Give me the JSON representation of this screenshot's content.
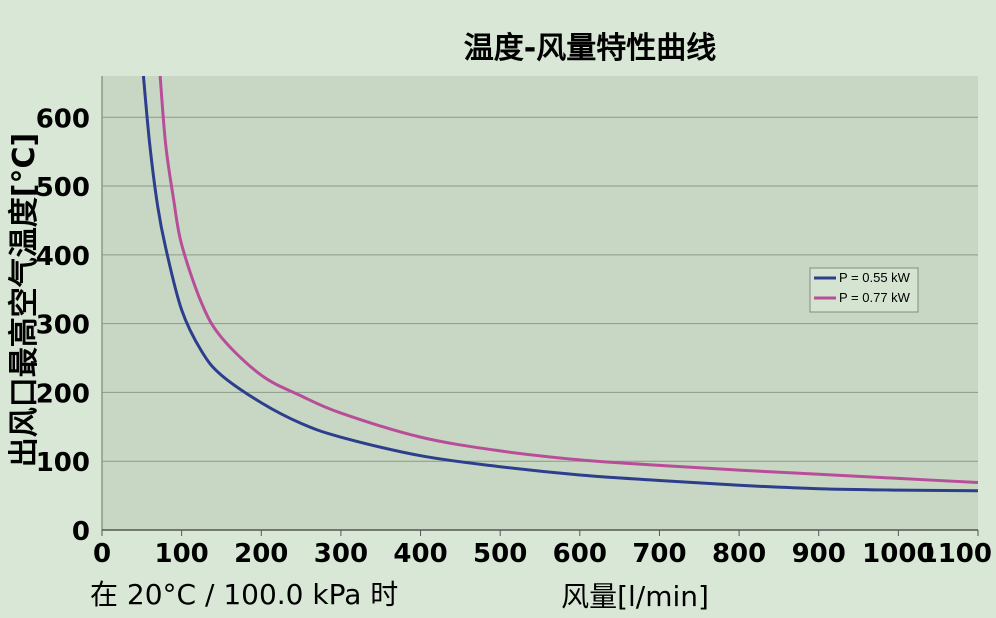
{
  "chart_data": {
    "type": "line",
    "title": "温度-风量特性曲线",
    "xlabel": "风量[l/min]",
    "ylabel": "出风口最高空气温度[°C]",
    "condition_note": "在 20°C / 100.0 kPa 时",
    "xlim": [
      0,
      1100
    ],
    "ylim": [
      0,
      660
    ],
    "x_ticks": [
      0,
      100,
      200,
      300,
      400,
      500,
      600,
      700,
      800,
      900,
      1000,
      1100
    ],
    "y_ticks": [
      0,
      100,
      200,
      300,
      400,
      500,
      600
    ],
    "grid": "horizontal",
    "legend_position": "right",
    "colors": {
      "background": "#d9e8d6",
      "plot_background": "#c7d7c3",
      "gridline": "#8a9a88",
      "series_1": "#2d3e8c",
      "series_2": "#b84e9a"
    },
    "series": [
      {
        "name": "P = 0.55 kW",
        "color": "#2d3e8c",
        "x": [
          52,
          60,
          70,
          80,
          100,
          125,
          150,
          200,
          250,
          300,
          400,
          500,
          600,
          700,
          800,
          900,
          1000,
          1100
        ],
        "y": [
          660,
          560,
          470,
          410,
          320,
          260,
          225,
          185,
          155,
          135,
          108,
          92,
          80,
          72,
          65,
          60,
          58,
          57
        ]
      },
      {
        "name": "P = 0.77 kW",
        "color": "#b84e9a",
        "x": [
          73,
          80,
          90,
          100,
          125,
          150,
          200,
          250,
          300,
          400,
          500,
          600,
          700,
          800,
          900,
          1000,
          1100
        ],
        "y": [
          660,
          560,
          480,
          415,
          330,
          280,
          225,
          195,
          170,
          135,
          115,
          102,
          94,
          87,
          81,
          75,
          69
        ]
      }
    ]
  }
}
